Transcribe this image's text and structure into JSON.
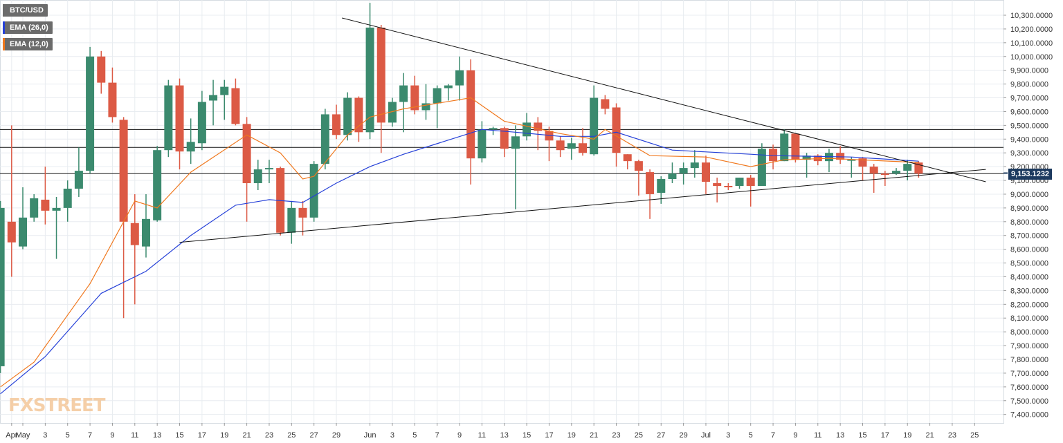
{
  "legend": {
    "symbol": "BTC/USD",
    "ema26": "EMA (26,0)",
    "ema12": "EMA (12,0)"
  },
  "watermark": "FXSTREET",
  "price_tag": "9,153.1232",
  "colors": {
    "up": "#3b8a6e",
    "down": "#dc5a45",
    "ema26": "#2540d8",
    "ema12": "#f0781e",
    "grid": "#e8ecf0",
    "price_tag_bg": "#1d3a5f"
  },
  "chart_data": {
    "type": "candlestick",
    "ylim": [
      7300,
      10400
    ],
    "grid": true,
    "y_ticks": [
      "7,400.0000",
      "7,500.0000",
      "7,600.0000",
      "7,700.0000",
      "7,800.0000",
      "7,900.0000",
      "8,000.0000",
      "8,100.0000",
      "8,200.0000",
      "8,300.0000",
      "8,400.0000",
      "8,500.0000",
      "8,600.0000",
      "8,700.0000",
      "8,800.0000",
      "8,900.0000",
      "9,000.0000",
      "9,100.0000",
      "9,200.0000",
      "9,300.0000",
      "9,400.0000",
      "9,500.0000",
      "9,600.0000",
      "9,700.0000",
      "9,800.0000",
      "9,900.0000",
      "10,000.0000",
      "10,100.0000",
      "10,200.0000",
      "10,300.0000"
    ],
    "x_labels": [
      "Apr",
      "May",
      "3",
      "5",
      "7",
      "9",
      "11",
      "13",
      "15",
      "17",
      "19",
      "21",
      "23",
      "25",
      "27",
      "29",
      "Jun",
      "3",
      "5",
      "7",
      "9",
      "11",
      "13",
      "15",
      "17",
      "19",
      "21",
      "23",
      "25",
      "27",
      "29",
      "Jul",
      "3",
      "5",
      "7",
      "9",
      "11",
      "13",
      "15",
      "17",
      "19",
      "21",
      "23",
      "25"
    ],
    "x_label_day": [
      -1,
      0,
      2,
      4,
      6,
      8,
      10,
      12,
      14,
      16,
      18,
      20,
      22,
      24,
      26,
      28,
      31,
      33,
      35,
      37,
      39,
      41,
      43,
      45,
      47,
      49,
      51,
      53,
      55,
      57,
      59,
      61,
      63,
      65,
      67,
      69,
      71,
      73,
      75,
      77,
      79,
      81,
      83,
      85
    ],
    "candles": [
      {
        "d": -2,
        "o": 7750,
        "h": 8950,
        "l": 7700,
        "c": 8900
      },
      {
        "d": -1,
        "o": 8800,
        "h": 9500,
        "l": 8400,
        "c": 8650
      },
      {
        "d": 0,
        "o": 8620,
        "h": 9050,
        "l": 8600,
        "c": 8830
      },
      {
        "d": 1,
        "o": 8830,
        "h": 9000,
        "l": 8800,
        "c": 8970
      },
      {
        "d": 2,
        "o": 8960,
        "h": 9200,
        "l": 8780,
        "c": 8880
      },
      {
        "d": 3,
        "o": 8880,
        "h": 8980,
        "l": 8530,
        "c": 8900
      },
      {
        "d": 4,
        "o": 8900,
        "h": 9100,
        "l": 8800,
        "c": 9040
      },
      {
        "d": 5,
        "o": 9040,
        "h": 9340,
        "l": 8980,
        "c": 9170
      },
      {
        "d": 6,
        "o": 9170,
        "h": 10070,
        "l": 9150,
        "c": 10000
      },
      {
        "d": 7,
        "o": 10000,
        "h": 10040,
        "l": 9730,
        "c": 9810
      },
      {
        "d": 8,
        "o": 9810,
        "h": 9920,
        "l": 9520,
        "c": 9560
      },
      {
        "d": 9,
        "o": 9540,
        "h": 9560,
        "l": 8100,
        "c": 8800
      },
      {
        "d": 10,
        "o": 8790,
        "h": 9000,
        "l": 8200,
        "c": 8630
      },
      {
        "d": 11,
        "o": 8620,
        "h": 9000,
        "l": 8540,
        "c": 8820
      },
      {
        "d": 12,
        "o": 8810,
        "h": 9350,
        "l": 8800,
        "c": 9320
      },
      {
        "d": 13,
        "o": 9320,
        "h": 9830,
        "l": 9270,
        "c": 9790
      },
      {
        "d": 14,
        "o": 9790,
        "h": 9840,
        "l": 9180,
        "c": 9310
      },
      {
        "d": 15,
        "o": 9310,
        "h": 9550,
        "l": 9220,
        "c": 9380
      },
      {
        "d": 16,
        "o": 9370,
        "h": 9750,
        "l": 9320,
        "c": 9670
      },
      {
        "d": 17,
        "o": 9680,
        "h": 9830,
        "l": 9500,
        "c": 9720
      },
      {
        "d": 18,
        "o": 9720,
        "h": 9830,
        "l": 9540,
        "c": 9780
      },
      {
        "d": 19,
        "o": 9770,
        "h": 9840,
        "l": 9500,
        "c": 9510
      },
      {
        "d": 20,
        "o": 9510,
        "h": 9560,
        "l": 8800,
        "c": 9080
      },
      {
        "d": 21,
        "o": 9080,
        "h": 9250,
        "l": 9030,
        "c": 9180
      },
      {
        "d": 22,
        "o": 9180,
        "h": 9250,
        "l": 9080,
        "c": 9190
      },
      {
        "d": 23,
        "o": 9190,
        "h": 9200,
        "l": 8700,
        "c": 8720
      },
      {
        "d": 24,
        "o": 8720,
        "h": 8950,
        "l": 8640,
        "c": 8900
      },
      {
        "d": 25,
        "o": 8900,
        "h": 8950,
        "l": 8700,
        "c": 8830
      },
      {
        "d": 26,
        "o": 8830,
        "h": 9240,
        "l": 8800,
        "c": 9220
      },
      {
        "d": 27,
        "o": 9220,
        "h": 9620,
        "l": 9180,
        "c": 9580
      },
      {
        "d": 28,
        "o": 9580,
        "h": 9650,
        "l": 9400,
        "c": 9430
      },
      {
        "d": 29,
        "o": 9430,
        "h": 9740,
        "l": 9390,
        "c": 9700
      },
      {
        "d": 30,
        "o": 9700,
        "h": 9710,
        "l": 9380,
        "c": 9450
      },
      {
        "d": 31,
        "o": 9450,
        "h": 10390,
        "l": 9400,
        "c": 10210
      },
      {
        "d": 32,
        "o": 10210,
        "h": 10230,
        "l": 9300,
        "c": 9520
      },
      {
        "d": 33,
        "o": 9520,
        "h": 9700,
        "l": 9490,
        "c": 9670
      },
      {
        "d": 34,
        "o": 9670,
        "h": 9880,
        "l": 9450,
        "c": 9790
      },
      {
        "d": 35,
        "o": 9790,
        "h": 9860,
        "l": 9580,
        "c": 9610
      },
      {
        "d": 36,
        "o": 9610,
        "h": 9800,
        "l": 9540,
        "c": 9660
      },
      {
        "d": 37,
        "o": 9660,
        "h": 9790,
        "l": 9480,
        "c": 9770
      },
      {
        "d": 38,
        "o": 9770,
        "h": 9800,
        "l": 9680,
        "c": 9790
      },
      {
        "d": 39,
        "o": 9790,
        "h": 10000,
        "l": 9680,
        "c": 9900
      },
      {
        "d": 40,
        "o": 9900,
        "h": 9980,
        "l": 9070,
        "c": 9260
      },
      {
        "d": 41,
        "o": 9260,
        "h": 9530,
        "l": 9230,
        "c": 9470
      },
      {
        "d": 42,
        "o": 9470,
        "h": 9490,
        "l": 9430,
        "c": 9480
      },
      {
        "d": 43,
        "o": 9480,
        "h": 9490,
        "l": 9270,
        "c": 9330
      },
      {
        "d": 44,
        "o": 9330,
        "h": 9500,
        "l": 8890,
        "c": 9420
      },
      {
        "d": 45,
        "o": 9420,
        "h": 9590,
        "l": 9390,
        "c": 9520
      },
      {
        "d": 46,
        "o": 9520,
        "h": 9560,
        "l": 9320,
        "c": 9460
      },
      {
        "d": 47,
        "o": 9460,
        "h": 9490,
        "l": 9240,
        "c": 9390
      },
      {
        "d": 48,
        "o": 9390,
        "h": 9420,
        "l": 9270,
        "c": 9320
      },
      {
        "d": 49,
        "o": 9330,
        "h": 9410,
        "l": 9250,
        "c": 9370
      },
      {
        "d": 50,
        "o": 9370,
        "h": 9480,
        "l": 9280,
        "c": 9300
      },
      {
        "d": 51,
        "o": 9290,
        "h": 9790,
        "l": 9280,
        "c": 9700
      },
      {
        "d": 52,
        "o": 9690,
        "h": 9720,
        "l": 9580,
        "c": 9620
      },
      {
        "d": 53,
        "o": 9630,
        "h": 9660,
        "l": 9200,
        "c": 9300
      },
      {
        "d": 54,
        "o": 9290,
        "h": 9290,
        "l": 9180,
        "c": 9240
      },
      {
        "d": 55,
        "o": 9240,
        "h": 9250,
        "l": 8990,
        "c": 9170
      },
      {
        "d": 56,
        "o": 9160,
        "h": 9180,
        "l": 8820,
        "c": 9000
      },
      {
        "d": 57,
        "o": 9010,
        "h": 9130,
        "l": 8930,
        "c": 9110
      },
      {
        "d": 58,
        "o": 9110,
        "h": 9230,
        "l": 9080,
        "c": 9150
      },
      {
        "d": 59,
        "o": 9150,
        "h": 9230,
        "l": 9070,
        "c": 9190
      },
      {
        "d": 60,
        "o": 9190,
        "h": 9320,
        "l": 9120,
        "c": 9230
      },
      {
        "d": 61,
        "o": 9230,
        "h": 9280,
        "l": 9000,
        "c": 9090
      },
      {
        "d": 62,
        "o": 9080,
        "h": 9120,
        "l": 8940,
        "c": 9060
      },
      {
        "d": 63,
        "o": 9060,
        "h": 9080,
        "l": 9030,
        "c": 9050
      },
      {
        "d": 64,
        "o": 9060,
        "h": 9120,
        "l": 9040,
        "c": 9120
      },
      {
        "d": 65,
        "o": 9120,
        "h": 9140,
        "l": 8910,
        "c": 9060
      },
      {
        "d": 66,
        "o": 9060,
        "h": 9370,
        "l": 9060,
        "c": 9330
      },
      {
        "d": 67,
        "o": 9330,
        "h": 9360,
        "l": 9180,
        "c": 9240
      },
      {
        "d": 68,
        "o": 9240,
        "h": 9470,
        "l": 9240,
        "c": 9440
      },
      {
        "d": 69,
        "o": 9440,
        "h": 9440,
        "l": 9230,
        "c": 9250
      },
      {
        "d": 70,
        "o": 9250,
        "h": 9300,
        "l": 9120,
        "c": 9280
      },
      {
        "d": 71,
        "o": 9280,
        "h": 9290,
        "l": 9210,
        "c": 9240
      },
      {
        "d": 72,
        "o": 9240,
        "h": 9330,
        "l": 9160,
        "c": 9300
      },
      {
        "d": 73,
        "o": 9300,
        "h": 9350,
        "l": 9220,
        "c": 9250
      },
      {
        "d": 74,
        "o": 9250,
        "h": 9270,
        "l": 9120,
        "c": 9250
      },
      {
        "d": 75,
        "o": 9260,
        "h": 9270,
        "l": 9100,
        "c": 9200
      },
      {
        "d": 76,
        "o": 9200,
        "h": 9220,
        "l": 9010,
        "c": 9150
      },
      {
        "d": 77,
        "o": 9150,
        "h": 9170,
        "l": 9060,
        "c": 9140
      },
      {
        "d": 78,
        "o": 9150,
        "h": 9190,
        "l": 9140,
        "c": 9170
      },
      {
        "d": 79,
        "o": 9170,
        "h": 9250,
        "l": 9100,
        "c": 9220
      },
      {
        "d": 80,
        "o": 9230,
        "h": 9240,
        "l": 9120,
        "c": 9150
      }
    ],
    "ema12": [
      [
        -2,
        7600
      ],
      [
        1,
        7780
      ],
      [
        6,
        8350
      ],
      [
        10,
        8950
      ],
      [
        12,
        8900
      ],
      [
        15,
        9160
      ],
      [
        20,
        9430
      ],
      [
        23,
        9300
      ],
      [
        25,
        9110
      ],
      [
        26,
        9130
      ],
      [
        29,
        9430
      ],
      [
        31,
        9560
      ],
      [
        34,
        9620
      ],
      [
        40,
        9700
      ],
      [
        43,
        9530
      ],
      [
        48,
        9440
      ],
      [
        51,
        9400
      ],
      [
        52,
        9470
      ],
      [
        56,
        9280
      ],
      [
        61,
        9270
      ],
      [
        65,
        9200
      ],
      [
        68,
        9250
      ],
      [
        72,
        9260
      ],
      [
        80,
        9230
      ]
    ],
    "ema26": [
      [
        -2,
        7550
      ],
      [
        2,
        7820
      ],
      [
        7,
        8280
      ],
      [
        11,
        8440
      ],
      [
        15,
        8700
      ],
      [
        19,
        8920
      ],
      [
        22,
        8960
      ],
      [
        25,
        8940
      ],
      [
        28,
        9080
      ],
      [
        31,
        9200
      ],
      [
        34,
        9290
      ],
      [
        41,
        9470
      ],
      [
        44,
        9450
      ],
      [
        48,
        9420
      ],
      [
        51,
        9420
      ],
      [
        53,
        9450
      ],
      [
        58,
        9320
      ],
      [
        65,
        9290
      ],
      [
        67,
        9280
      ],
      [
        74,
        9270
      ],
      [
        80,
        9240
      ]
    ],
    "h_lines": [
      9470,
      9340,
      9150
    ],
    "trendlines": [
      {
        "x0": 28.5,
        "y0": 10280,
        "x1": 86,
        "y1": 9090
      },
      {
        "x0": 14,
        "y0": 8650,
        "x1": 86,
        "y1": 9180
      }
    ]
  }
}
